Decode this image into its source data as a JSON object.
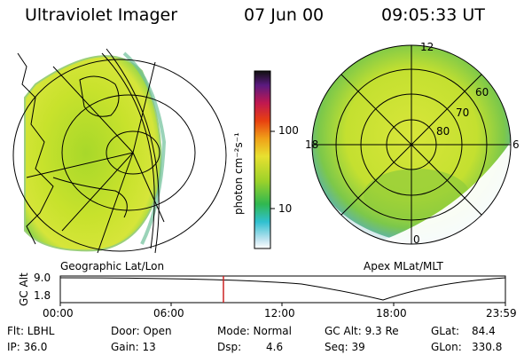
{
  "header": {
    "title": "Ultraviolet Imager",
    "date": "07 Jun 00",
    "time": "09:05:33 UT"
  },
  "left_panel": {
    "caption": "Geographic Lat/Lon"
  },
  "right_panel": {
    "caption": "Apex MLat/MLT",
    "mlt_labels": {
      "top": "12",
      "left": "18",
      "right": "6",
      "bottom": "0"
    },
    "lat_labels": [
      "60",
      "70",
      "80"
    ]
  },
  "colorbar": {
    "unit": "photon cm⁻²s⁻¹",
    "ticks": [
      "100",
      "10"
    ],
    "scale": "log"
  },
  "timeline": {
    "ylabel": "GC Alt",
    "y_ticks": [
      "9.0",
      "1.8"
    ],
    "x_ticks": [
      "00:00",
      "06:00",
      "12:00",
      "18:00",
      "23:59"
    ],
    "current_time_marker": "09:05:33"
  },
  "status": {
    "row1": [
      {
        "label": "Flt: LBHL"
      },
      {
        "label": "Door: Open"
      },
      {
        "label": "Mode: Normal"
      },
      {
        "label": "GC Alt: 9.3 Re"
      },
      {
        "label": "GLat:",
        "value": "84.4"
      }
    ],
    "row2": [
      {
        "label": "IP: 36.0"
      },
      {
        "label": "Gain: 13"
      },
      {
        "label": "Dsp:",
        "value": "4.6"
      },
      {
        "label": "Seq: 39"
      },
      {
        "label": "GLon:",
        "value": "330.8"
      }
    ]
  },
  "colors": {
    "marker": "#cc2222",
    "grid": "#000000"
  }
}
